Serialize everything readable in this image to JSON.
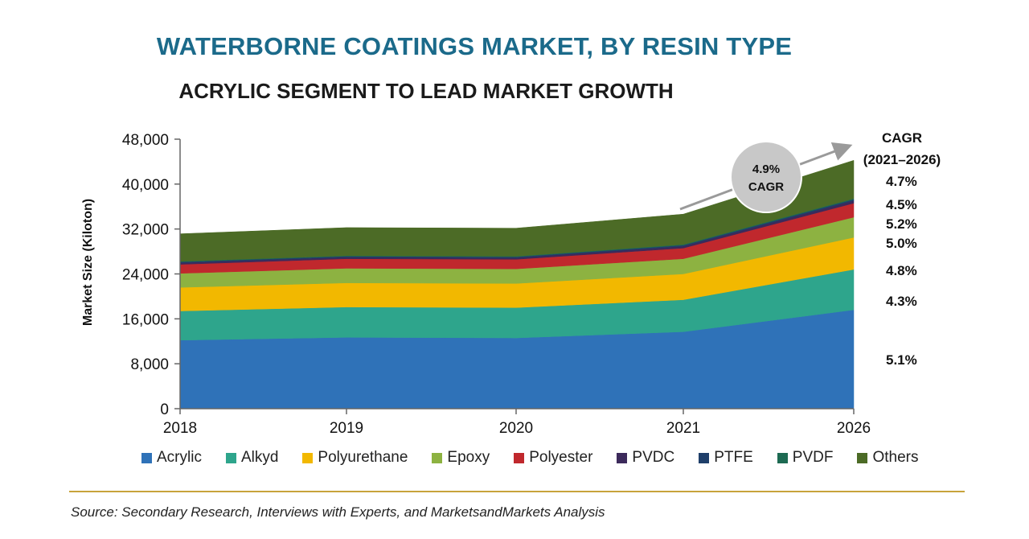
{
  "header": {
    "title": "WATERBORNE COATINGS MARKET, BY RESIN TYPE",
    "subtitle": "ACRYLIC SEGMENT TO LEAD MARKET GROWTH"
  },
  "chart_data": {
    "type": "area",
    "stacked": true,
    "title": "WATERBORNE COATINGS MARKET, BY RESIN TYPE",
    "ylabel": "Market Size (Kiloton)",
    "xlabel": "",
    "ylim": [
      0,
      48000
    ],
    "yticks": [
      0,
      8000,
      16000,
      24000,
      32000,
      40000,
      48000
    ],
    "ytick_labels": [
      "0",
      "8,000",
      "16,000",
      "24,000",
      "32,000",
      "40,000",
      "48,000"
    ],
    "categories": [
      "2018",
      "2019",
      "2020",
      "2021",
      "2026"
    ],
    "series": [
      {
        "name": "Acrylic",
        "color": "#2f72b8",
        "values": [
          12200,
          12700,
          12600,
          13700,
          17600
        ],
        "cagr": "5.1%"
      },
      {
        "name": "Alkyd",
        "color": "#2ea58c",
        "values": [
          5200,
          5400,
          5400,
          5700,
          7200
        ],
        "cagr": "4.3%"
      },
      {
        "name": "Polyurethane",
        "color": "#f2b800",
        "values": [
          4200,
          4300,
          4300,
          4600,
          5700
        ],
        "cagr": "4.8%"
      },
      {
        "name": "Epoxy",
        "color": "#8db241",
        "values": [
          2500,
          2600,
          2600,
          2700,
          3600
        ],
        "cagr": "5.0%"
      },
      {
        "name": "Polyester",
        "color": "#c0282d",
        "values": [
          1600,
          1700,
          1700,
          1900,
          2500
        ],
        "cagr": "5.2%"
      },
      {
        "name": "PVDC",
        "color": "#3c2a5b",
        "values": [
          300,
          300,
          300,
          350,
          450
        ],
        "cagr": ""
      },
      {
        "name": "PTFE",
        "color": "#1f3f6a",
        "values": [
          150,
          150,
          150,
          180,
          230
        ],
        "cagr": ""
      },
      {
        "name": "PVDF",
        "color": "#1d6a52",
        "values": [
          100,
          100,
          100,
          120,
          150
        ],
        "cagr": "4.5%"
      },
      {
        "name": "Others",
        "color": "#4c6b26",
        "values": [
          4900,
          5000,
          5000,
          5400,
          6800
        ],
        "cagr": "4.7%"
      }
    ],
    "cagr_header": [
      "CAGR",
      "(2021–2026)"
    ],
    "annotation": {
      "value": "4.9%",
      "label": "CAGR"
    },
    "legend_position": "bottom"
  },
  "footer": {
    "source": "Source: Secondary Research, Interviews with Experts, and MarketsandMarkets Analysis"
  }
}
